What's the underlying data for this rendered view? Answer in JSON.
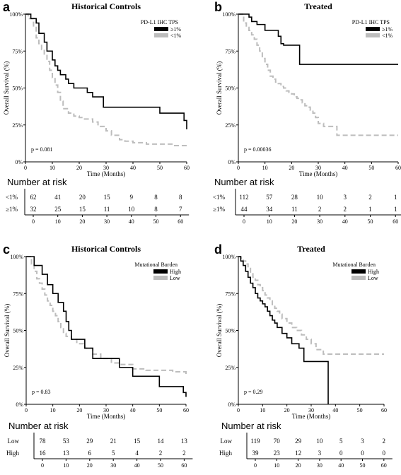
{
  "colors": {
    "black_series": "#000000",
    "gray_series": "#bdbdbd",
    "axis": "#000000"
  },
  "chart_data": [
    {
      "type": "kaplan-meier",
      "panel_letter": "a",
      "title": "Historical Controls",
      "xlabel": "Time (Months)",
      "ylabel": "Overall Survival (%)",
      "xlim": [
        0,
        60
      ],
      "ylim": [
        0,
        100
      ],
      "x_ticks": [
        "0",
        "10",
        "20",
        "30",
        "40",
        "50",
        "60"
      ],
      "y_ticks": [
        "0%",
        "25%",
        "50%",
        "75%",
        "100%"
      ],
      "legend_title": "PD-L1 IHC TPS",
      "legend_position": "top-right",
      "p_value": "p = 0.081",
      "series": [
        {
          "name": "≥1%",
          "color": "black",
          "x": [
            0,
            2,
            4,
            5,
            7,
            8,
            10,
            11,
            12,
            13,
            15,
            16,
            18,
            20,
            23,
            25,
            29,
            45,
            50,
            59,
            60
          ],
          "y": [
            100,
            97,
            94,
            87,
            81,
            75,
            69,
            65,
            62,
            59,
            56,
            53,
            50,
            50,
            47,
            44,
            37,
            37,
            33,
            28,
            22
          ]
        },
        {
          "name": "<1%",
          "color": "gray",
          "x": [
            0,
            1,
            3,
            4,
            5,
            6,
            7,
            8,
            9,
            10,
            11,
            12,
            13,
            14,
            16,
            18,
            20,
            22,
            25,
            27,
            30,
            32,
            35,
            37,
            40,
            45,
            50,
            55,
            60
          ],
          "y": [
            100,
            97,
            91,
            84,
            80,
            76,
            72,
            68,
            62,
            57,
            52,
            47,
            41,
            36,
            33,
            31,
            30,
            29,
            27,
            24,
            21,
            18,
            15,
            14,
            13,
            12,
            12,
            11,
            10
          ]
        }
      ],
      "risk_table": {
        "heading": "Number at risk",
        "rows": [
          {
            "label": "<1%",
            "values": [
              "62",
              "41",
              "20",
              "15",
              "9",
              "8",
              "8"
            ]
          },
          {
            "label": "≥1%",
            "values": [
              "32",
              "25",
              "15",
              "11",
              "10",
              "8",
              "7"
            ]
          }
        ],
        "ticks": [
          "0",
          "10",
          "20",
          "30",
          "40",
          "50",
          "60"
        ]
      }
    },
    {
      "type": "kaplan-meier",
      "panel_letter": "b",
      "title": "Treated",
      "xlabel": "Time (Months)",
      "ylabel": "Overall Survival (%)",
      "xlim": [
        0,
        60
      ],
      "ylim": [
        0,
        100
      ],
      "x_ticks": [
        "0",
        "10",
        "20",
        "30",
        "40",
        "50",
        "60"
      ],
      "y_ticks": [
        "0%",
        "25%",
        "50%",
        "75%",
        "100%"
      ],
      "legend_title": "PD-L1 IHC TPS",
      "legend_position": "top-right",
      "p_value": "p = 0.00036",
      "series": [
        {
          "name": "≥1%",
          "color": "black",
          "x": [
            0,
            4,
            5,
            7,
            10,
            15,
            16,
            17,
            23,
            60
          ],
          "y": [
            100,
            98,
            95,
            93,
            89,
            85,
            80,
            79,
            66,
            66
          ]
        },
        {
          "name": "<1%",
          "color": "gray",
          "x": [
            0,
            2,
            3,
            4,
            5,
            6,
            7,
            8,
            9,
            10,
            11,
            12,
            13,
            14,
            15,
            16,
            17,
            18,
            19,
            20,
            21,
            22,
            23,
            24,
            25,
            26,
            27,
            28,
            29,
            30,
            32,
            35,
            37,
            60
          ],
          "y": [
            100,
            94,
            91,
            89,
            86,
            83,
            79,
            75,
            70,
            66,
            62,
            58,
            56,
            54,
            53,
            51,
            50,
            48,
            47,
            46,
            44,
            43,
            42,
            40,
            38,
            37,
            35,
            33,
            30,
            26,
            24,
            24,
            18,
            18
          ]
        }
      ],
      "risk_table": {
        "heading": "Number at risk",
        "rows": [
          {
            "label": "<1%",
            "values": [
              "112",
              "57",
              "28",
              "10",
              "3",
              "2",
              "1"
            ]
          },
          {
            "label": "≥1%",
            "values": [
              "44",
              "34",
              "11",
              "2",
              "2",
              "1",
              "1"
            ]
          }
        ],
        "ticks": [
          "0",
          "10",
          "20",
          "30",
          "40",
          "50",
          "60"
        ]
      }
    },
    {
      "type": "kaplan-meier",
      "panel_letter": "c",
      "title": "Historical Controls",
      "xlabel": "Time (Months)",
      "ylabel": "Overall Survival (%)",
      "xlim": [
        0,
        60
      ],
      "ylim": [
        0,
        100
      ],
      "x_ticks": [
        "0",
        "10",
        "20",
        "30",
        "40",
        "50",
        "60"
      ],
      "y_ticks": [
        "0%",
        "25%",
        "50%",
        "75%",
        "100%"
      ],
      "legend_title": "Mutational Burden",
      "legend_position": "top-right",
      "p_value": "p = 0.83",
      "series": [
        {
          "name": "High",
          "color": "black",
          "x": [
            0,
            3,
            6,
            8,
            10,
            12,
            14,
            15,
            16,
            17,
            20,
            22,
            25,
            30,
            35,
            40,
            45,
            50,
            59,
            60
          ],
          "y": [
            100,
            94,
            88,
            81,
            75,
            69,
            63,
            56,
            50,
            44,
            44,
            38,
            31,
            31,
            25,
            19,
            19,
            12,
            8,
            5
          ]
        },
        {
          "name": "Low",
          "color": "gray",
          "x": [
            0,
            2,
            3,
            4,
            5,
            6,
            7,
            8,
            9,
            10,
            11,
            12,
            13,
            14,
            15,
            17,
            19,
            22,
            25,
            28,
            32,
            35,
            40,
            45,
            50,
            55,
            60
          ],
          "y": [
            100,
            95,
            90,
            85,
            82,
            78,
            74,
            70,
            67,
            63,
            60,
            56,
            52,
            48,
            46,
            44,
            41,
            38,
            34,
            31,
            28,
            27,
            24,
            23,
            23,
            22,
            20
          ]
        }
      ],
      "risk_table": {
        "heading": "Number at risk",
        "rows": [
          {
            "label": "Low",
            "values": [
              "78",
              "53",
              "29",
              "21",
              "15",
              "14",
              "13"
            ]
          },
          {
            "label": "High",
            "values": [
              "16",
              "13",
              "6",
              "5",
              "4",
              "2",
              "2"
            ]
          }
        ],
        "ticks": [
          "0",
          "10",
          "20",
          "30",
          "40",
          "50",
          "60"
        ]
      }
    },
    {
      "type": "kaplan-meier",
      "panel_letter": "d",
      "title": "Treated",
      "xlabel": "Time (Months)",
      "ylabel": "Overall Survival (%)",
      "xlim": [
        0,
        60
      ],
      "ylim": [
        0,
        100
      ],
      "x_ticks": [
        "0",
        "10",
        "20",
        "30",
        "40",
        "50",
        "60"
      ],
      "y_ticks": [
        "0%",
        "25%",
        "50%",
        "75%",
        "100%"
      ],
      "legend_title": "Mutational Burden",
      "legend_position": "top-right",
      "p_value": "p = 0.29",
      "series": [
        {
          "name": "High",
          "color": "black",
          "x": [
            0,
            1,
            2,
            3,
            4,
            5,
            6,
            7,
            8,
            9,
            10,
            11,
            12,
            13,
            14,
            15,
            16,
            18,
            20,
            22,
            25,
            27,
            30,
            37
          ],
          "y": [
            100,
            97,
            94,
            90,
            86,
            82,
            79,
            75,
            72,
            70,
            68,
            66,
            63,
            60,
            57,
            55,
            52,
            48,
            45,
            41,
            38,
            29,
            29,
            0
          ]
        },
        {
          "name": "Low",
          "color": "gray",
          "x": [
            0,
            1,
            2,
            3,
            4,
            5,
            6,
            7,
            8,
            9,
            10,
            11,
            12,
            13,
            14,
            15,
            16,
            17,
            18,
            20,
            22,
            24,
            26,
            28,
            30,
            32,
            35,
            60
          ],
          "y": [
            100,
            99,
            97,
            95,
            92,
            89,
            86,
            84,
            81,
            79,
            77,
            74,
            72,
            70,
            67,
            65,
            63,
            61,
            58,
            55,
            52,
            50,
            47,
            44,
            41,
            37,
            34,
            34
          ]
        }
      ],
      "risk_table": {
        "heading": "Number at risk",
        "rows": [
          {
            "label": "Low",
            "values": [
              "119",
              "70",
              "29",
              "10",
              "5",
              "3",
              "2"
            ]
          },
          {
            "label": "High",
            "values": [
              "39",
              "23",
              "12",
              "3",
              "0",
              "0",
              "0"
            ]
          }
        ],
        "ticks": [
          "0",
          "10",
          "20",
          "30",
          "40",
          "50",
          "60"
        ]
      }
    }
  ]
}
